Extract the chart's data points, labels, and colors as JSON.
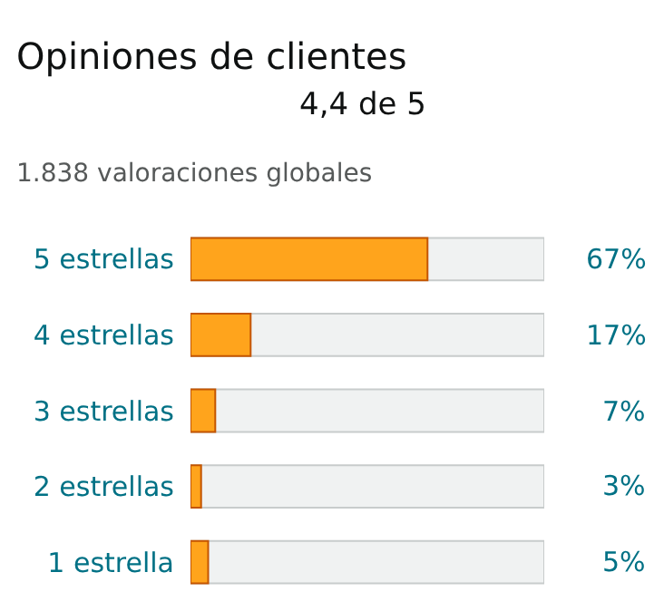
{
  "chart_data": {
    "type": "bar",
    "orientation": "horizontal",
    "title": "Opiniones de clientes",
    "subtitle": "4,4 de 5",
    "annotations": [
      "1.838 valoraciones globales"
    ],
    "categories": [
      "5 estrellas",
      "4 estrellas",
      "3 estrellas",
      "2 estrellas",
      "1 estrella"
    ],
    "values": [
      67,
      17,
      7,
      3,
      5
    ],
    "color": "#ffa41c",
    "value_labels": [
      "67%",
      "17%",
      "7%",
      "3%",
      "5%"
    ],
    "xlim": [
      0,
      100
    ],
    "tick_labels": "y",
    "grid": false,
    "legend": false
  }
}
